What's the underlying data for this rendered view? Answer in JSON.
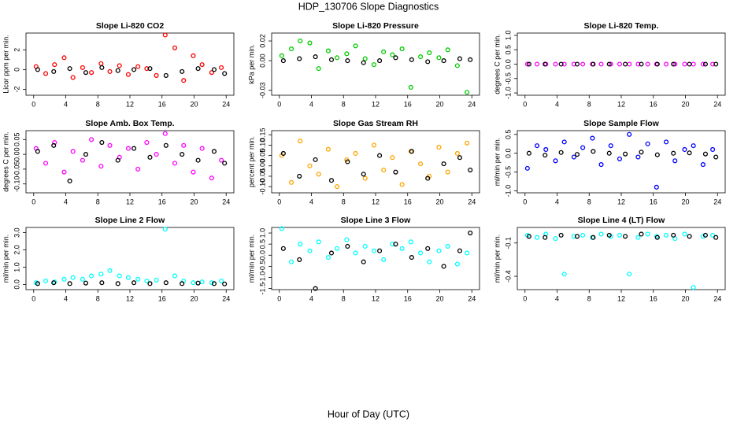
{
  "figure": {
    "title": "HDP_130706  Slope Diagnostics",
    "xlabel": "Hour of Day (UTC)"
  },
  "chart_data": [
    {
      "type": "scatter",
      "title": "Slope Li-820 CO2",
      "ylabel": "Licor ppm per min.",
      "xlim": [
        -0.96,
        24.96
      ],
      "xticks": [
        0,
        4,
        8,
        12,
        16,
        20,
        24
      ],
      "ylim": [
        -2.6,
        3.7
      ],
      "yticks": [
        -2,
        0,
        2
      ],
      "series": [
        {
          "color": "#ff0000",
          "x": [
            0.3,
            1.5,
            2.6,
            3.8,
            4.9,
            6.1,
            7.2,
            8.4,
            9.5,
            10.7,
            11.8,
            13.0,
            14.1,
            15.3,
            16.4,
            17.6,
            18.7,
            19.9,
            21.0,
            22.2,
            23.4
          ],
          "values": [
            0.3,
            -0.4,
            0.5,
            1.2,
            -0.8,
            0.2,
            -0.3,
            0.6,
            -0.2,
            0.4,
            -0.5,
            0.3,
            0.1,
            -0.6,
            3.5,
            2.2,
            -1.1,
            1.4,
            0.5,
            -0.3,
            0.2
          ]
        },
        {
          "color": "#000000",
          "x": [
            0.5,
            2.5,
            4.5,
            6.5,
            8.5,
            10.5,
            12.5,
            14.5,
            16.5,
            18.5,
            20.5,
            22.5,
            23.8
          ],
          "values": [
            0,
            -0.2,
            0.1,
            -0.3,
            0.2,
            -0.1,
            0,
            0.1,
            -0.6,
            -0.2,
            0.1,
            0,
            -0.4
          ]
        }
      ]
    },
    {
      "type": "scatter",
      "title": "Slope Li-820 Pressure",
      "ylabel": "kPa per min.",
      "xlim": [
        -0.96,
        24.96
      ],
      "xticks": [
        0,
        4,
        8,
        12,
        16,
        20,
        24
      ],
      "ylim": [
        -0.035,
        0.028
      ],
      "yticks": [
        -0.03,
        {
          "value": 0,
          "label": "0.00"
        },
        0.02
      ],
      "series": [
        {
          "color": "#00cc00",
          "x": [
            0.3,
            1.5,
            2.6,
            3.8,
            4.9,
            6.1,
            7.2,
            8.4,
            9.5,
            10.7,
            11.8,
            13.0,
            14.1,
            15.3,
            16.4,
            17.6,
            18.7,
            19.9,
            21.0,
            22.2,
            23.4
          ],
          "values": [
            0.005,
            0.012,
            0.02,
            0.018,
            -0.008,
            0.01,
            0.003,
            0.007,
            0.015,
            0.002,
            -0.004,
            0.009,
            0.006,
            0.012,
            -0.027,
            0.004,
            0.008,
            0.003,
            0.011,
            -0.005,
            -0.032
          ]
        },
        {
          "color": "#000000",
          "x": [
            0.5,
            2.5,
            4.5,
            6.5,
            8.5,
            10.5,
            12.5,
            14.5,
            16.5,
            18.5,
            20.5,
            22.5,
            23.8
          ],
          "values": [
            0,
            0.002,
            0.004,
            0.001,
            0,
            -0.002,
            0,
            0.003,
            0.001,
            -0.001,
            0,
            0.002,
            0.001
          ]
        }
      ]
    },
    {
      "type": "scatter",
      "title": "Slope Li-820 Temp.",
      "ylabel": "degrees C per min.",
      "xlim": [
        -0.96,
        24.96
      ],
      "xticks": [
        0,
        4,
        8,
        12,
        16,
        20,
        24
      ],
      "ylim": [
        -1.08,
        1.08
      ],
      "yticks": [
        {
          "value": -1,
          "label": "-1.0"
        },
        -0.5,
        {
          "value": 0,
          "label": "0.0"
        },
        0.5,
        {
          "value": 1,
          "label": "1.0"
        }
      ],
      "series": [
        {
          "color": "#ff00ff",
          "x": [
            0.3,
            1.5,
            2.6,
            3.8,
            4.9,
            6.1,
            7.2,
            8.4,
            9.5,
            10.7,
            11.8,
            13.0,
            14.1,
            15.3,
            16.4,
            17.6,
            18.7,
            19.9,
            21.0,
            22.2,
            23.4
          ],
          "values": [
            0,
            0,
            0,
            0,
            0,
            0,
            0,
            0,
            0,
            0,
            0,
            0,
            0,
            0,
            0,
            0,
            0,
            0,
            0,
            0,
            0
          ]
        },
        {
          "color": "#000000",
          "x": [
            0.5,
            2.5,
            4.5,
            6.5,
            8.5,
            10.5,
            12.5,
            14.5,
            16.5,
            18.5,
            20.5,
            22.5,
            23.8
          ],
          "values": [
            0,
            0,
            0,
            0,
            0,
            0,
            0,
            0,
            0,
            0,
            0,
            0,
            0
          ]
        }
      ]
    },
    {
      "type": "scatter",
      "title": "Slope Amb. Box Temp.",
      "ylabel": "degrees C per min.",
      "xlim": [
        -0.96,
        24.96
      ],
      "xticks": [
        0,
        4,
        8,
        12,
        16,
        20,
        24
      ],
      "ylim": [
        -0.13,
        0.08
      ],
      "yticks": [
        {
          "value": -0.1,
          "label": "-0.10"
        },
        -0.05,
        {
          "value": 0,
          "label": "0.00"
        },
        0.05
      ],
      "series": [
        {
          "color": "#ff00ff",
          "x": [
            0.3,
            1.5,
            2.6,
            3.8,
            4.9,
            6.1,
            7.2,
            8.4,
            9.5,
            10.7,
            11.8,
            13.0,
            14.1,
            15.3,
            16.4,
            17.6,
            18.7,
            19.9,
            21.0,
            22.2,
            23.4
          ],
          "values": [
            0.02,
            -0.03,
            0.04,
            -0.06,
            0.01,
            -0.02,
            0.05,
            -0.04,
            0.03,
            -0.01,
            0.02,
            -0.05,
            0.04,
            0,
            0.07,
            -0.03,
            0.03,
            -0.06,
            0.02,
            -0.08,
            -0.02
          ]
        },
        {
          "color": "#000000",
          "x": [
            0.5,
            2.5,
            4.5,
            6.5,
            8.5,
            10.5,
            12.5,
            14.5,
            16.5,
            18.5,
            20.5,
            22.5,
            23.8
          ],
          "values": [
            0.01,
            0.03,
            -0.09,
            0,
            0.04,
            -0.02,
            0.02,
            -0.01,
            0.03,
            0,
            -0.02,
            0.01,
            -0.03
          ]
        }
      ]
    },
    {
      "type": "scatter",
      "title": "Slope Gas Stream RH",
      "ylabel": "percent per min.",
      "xlim": [
        -0.96,
        24.96
      ],
      "xticks": [
        0,
        4,
        8,
        12,
        16,
        20,
        24
      ],
      "ylim": [
        -0.13,
        0.17
      ],
      "yticks": [
        {
          "value": -0.1,
          "label": "-0.10"
        },
        -0.05,
        {
          "value": 0,
          "label": "0.00"
        },
        0.05,
        {
          "value": 0.1,
          "label": "0.10"
        },
        0.15
      ],
      "series": [
        {
          "color": "#ffa500",
          "x": [
            0.3,
            1.5,
            2.6,
            3.8,
            4.9,
            6.1,
            7.2,
            8.4,
            9.5,
            10.7,
            11.8,
            13.0,
            14.1,
            15.3,
            16.4,
            17.6,
            18.7,
            19.9,
            21.0,
            22.2,
            23.4
          ],
          "values": [
            0.05,
            -0.08,
            0.12,
            0,
            -0.04,
            0.08,
            -0.1,
            0.03,
            0.06,
            -0.06,
            0.1,
            -0.02,
            0.04,
            -0.09,
            0.07,
            0.01,
            -0.05,
            0.09,
            -0.03,
            0.06,
            0.11
          ]
        },
        {
          "color": "#000000",
          "x": [
            0.5,
            2.5,
            4.5,
            6.5,
            8.5,
            10.5,
            12.5,
            14.5,
            16.5,
            18.5,
            20.5,
            22.5,
            23.8
          ],
          "values": [
            0.06,
            -0.05,
            0.03,
            -0.07,
            0.02,
            -0.04,
            0.05,
            -0.03,
            0.07,
            -0.06,
            0.01,
            0.04,
            -0.02
          ]
        }
      ]
    },
    {
      "type": "scatter",
      "title": "Slope Sample Flow",
      "ylabel": "ml/min per min.",
      "xlim": [
        -0.96,
        24.96
      ],
      "xticks": [
        0,
        4,
        8,
        12,
        16,
        20,
        24
      ],
      "ylim": [
        -1.05,
        0.6
      ],
      "yticks": [
        {
          "value": -1,
          "label": "-1.0"
        },
        -0.5,
        {
          "value": 0,
          "label": "0.0"
        },
        0.5
      ],
      "series": [
        {
          "color": "#0000ff",
          "x": [
            0.3,
            1.5,
            2.6,
            3.8,
            4.9,
            6.1,
            7.2,
            8.4,
            9.5,
            10.7,
            11.8,
            13.0,
            14.1,
            15.3,
            16.4,
            17.6,
            18.7,
            19.9,
            21.0,
            22.2,
            23.4
          ],
          "values": [
            -0.4,
            0.2,
            0.1,
            -0.2,
            0.3,
            -0.1,
            0.15,
            0.4,
            -0.3,
            0.2,
            -0.15,
            0.5,
            -0.1,
            0.25,
            -0.9,
            0.3,
            -0.2,
            0.1,
            0.2,
            -0.3,
            0.1
          ]
        },
        {
          "color": "#000000",
          "x": [
            0.5,
            2.5,
            4.5,
            6.5,
            8.5,
            10.5,
            12.5,
            14.5,
            16.5,
            18.5,
            20.5,
            22.5,
            23.8
          ],
          "values": [
            0,
            -0.05,
            0.02,
            -0.03,
            0.05,
            0,
            -0.02,
            0.03,
            -0.04,
            0,
            0.01,
            -0.02,
            -0.1
          ]
        }
      ]
    },
    {
      "type": "scatter",
      "title": "Slope Line 2 Flow",
      "ylabel": "ml/min per min.",
      "xlim": [
        -0.96,
        24.96
      ],
      "xticks": [
        0,
        4,
        8,
        12,
        16,
        20,
        24
      ],
      "ylim": [
        -0.3,
        3.3
      ],
      "yticks": [
        {
          "value": 0,
          "label": "0.0"
        },
        {
          "value": 1,
          "label": "1.0"
        },
        {
          "value": 2,
          "label": "2.0"
        },
        {
          "value": 3,
          "label": "3.0"
        }
      ],
      "series": [
        {
          "color": "#00ffff",
          "x": [
            0.3,
            1.5,
            2.6,
            3.8,
            4.9,
            6.1,
            7.2,
            8.4,
            9.5,
            10.7,
            11.8,
            13.0,
            14.1,
            15.3,
            16.4,
            17.6,
            18.7,
            19.9,
            21.0,
            22.2,
            23.4
          ],
          "values": [
            0.1,
            0.2,
            0.15,
            0.3,
            0.4,
            0.3,
            0.5,
            0.6,
            0.8,
            0.5,
            0.4,
            0.3,
            0.2,
            0.25,
            3.2,
            0.5,
            0.2,
            0.1,
            0.15,
            0.1,
            0.2
          ]
        },
        {
          "color": "#000000",
          "x": [
            0.5,
            2.5,
            4.5,
            6.5,
            8.5,
            10.5,
            12.5,
            14.5,
            16.5,
            18.5,
            20.5,
            22.5,
            23.8
          ],
          "values": [
            0.05,
            0.1,
            0.05,
            0.08,
            0.1,
            0.05,
            0.1,
            0.05,
            0.1,
            0.05,
            0.08,
            0.05,
            0.03
          ]
        }
      ]
    },
    {
      "type": "scatter",
      "title": "Slope Line 3 Flow",
      "ylabel": "ml/min per min.",
      "xlim": [
        -0.96,
        24.96
      ],
      "xticks": [
        0,
        4,
        8,
        12,
        16,
        20,
        24
      ],
      "ylim": [
        -1.55,
        1.25
      ],
      "yticks": [
        -1.5,
        {
          "value": -1,
          "label": "-1.0"
        },
        -0.5,
        {
          "value": 0,
          "label": "0.0"
        },
        0.5,
        {
          "value": 1,
          "label": "1.0"
        }
      ],
      "series": [
        {
          "color": "#00ffff",
          "x": [
            0.3,
            1.5,
            2.6,
            3.8,
            4.9,
            6.1,
            7.2,
            8.4,
            9.5,
            10.7,
            11.8,
            13.0,
            14.1,
            15.3,
            16.4,
            17.6,
            18.7,
            19.9,
            21.0,
            22.2,
            23.4
          ],
          "values": [
            1.2,
            -0.3,
            0.5,
            0.2,
            0.6,
            -0.1,
            0.3,
            0.7,
            0.1,
            0.4,
            0.2,
            -0.2,
            0.5,
            0.3,
            0.6,
            0.1,
            -0.3,
            0.2,
            0.4,
            -0.4,
            0.1
          ]
        },
        {
          "color": "#000000",
          "x": [
            0.5,
            2.5,
            4.5,
            6.5,
            8.5,
            10.5,
            12.5,
            14.5,
            16.5,
            18.5,
            20.5,
            22.5,
            23.8
          ],
          "values": [
            0.3,
            -0.2,
            -1.5,
            0.1,
            0.4,
            -0.3,
            0.2,
            0.5,
            -0.1,
            0.3,
            -0.5,
            0.2,
            1.0
          ]
        }
      ]
    },
    {
      "type": "scatter",
      "title": "Slope Line 4 (LT) Flow",
      "ylabel": "ml/min per min.",
      "xlim": [
        -0.96,
        24.96
      ],
      "xticks": [
        0,
        4,
        8,
        12,
        16,
        20,
        24
      ],
      "ylim": [
        -0.52,
        0.04
      ],
      "yticks": [
        -0.4,
        -0.1
      ],
      "series": [
        {
          "color": "#00ffff",
          "x": [
            0.3,
            1.5,
            2.6,
            3.8,
            4.9,
            6.1,
            7.2,
            8.4,
            9.5,
            10.7,
            11.8,
            13.0,
            14.1,
            15.3,
            16.4,
            17.6,
            18.7,
            19.9,
            21.0,
            22.2,
            23.4
          ],
          "values": [
            -0.03,
            -0.05,
            -0.02,
            -0.06,
            -0.38,
            -0.04,
            -0.03,
            -0.05,
            -0.02,
            -0.04,
            -0.03,
            -0.38,
            -0.05,
            -0.02,
            -0.04,
            -0.03,
            -0.06,
            -0.02,
            -0.5,
            -0.04,
            -0.03
          ]
        },
        {
          "color": "#000000",
          "x": [
            0.5,
            2.5,
            4.5,
            6.5,
            8.5,
            10.5,
            12.5,
            14.5,
            16.5,
            18.5,
            20.5,
            22.5,
            23.8
          ],
          "values": [
            -0.04,
            -0.05,
            -0.03,
            -0.04,
            -0.05,
            -0.03,
            -0.04,
            -0.02,
            -0.05,
            -0.03,
            -0.04,
            -0.03,
            -0.05
          ]
        }
      ]
    }
  ]
}
